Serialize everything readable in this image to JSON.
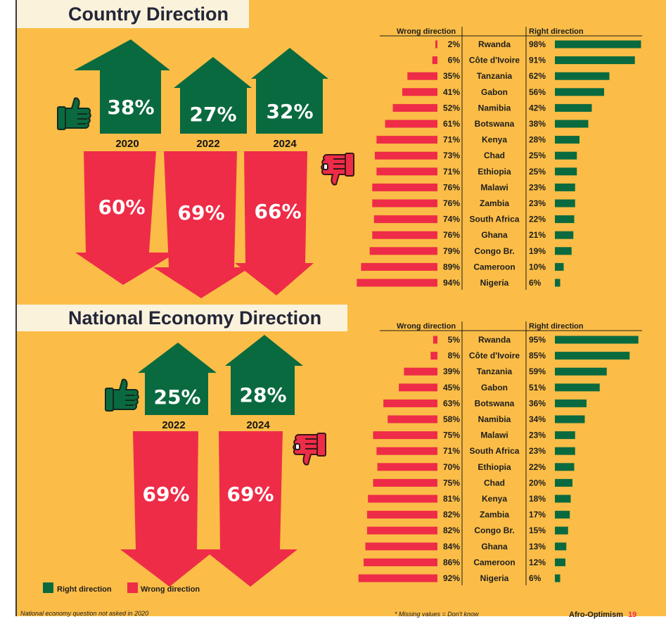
{
  "colors": {
    "right": "#0a6a3f",
    "wrong": "#ee2c48",
    "background": "#fbbd47",
    "banner": "#fbf2dc"
  },
  "sections": [
    {
      "title": "Country Direction",
      "years": [
        "2020",
        "2022",
        "2024"
      ],
      "right_pct": [
        "38%",
        "27%",
        "32%"
      ],
      "wrong_pct": [
        "60%",
        "69%",
        "66%"
      ]
    },
    {
      "title": "National Economy Direction",
      "years": [
        "2022",
        "2024"
      ],
      "right_pct": [
        "25%",
        "28%"
      ],
      "wrong_pct": [
        "69%",
        "69%"
      ]
    }
  ],
  "chart_data": [
    {
      "type": "bar",
      "title": "Country Direction",
      "header_wrong": "Wrong direction",
      "header_right": "Right direction",
      "categories": [
        "Rwanda",
        "Côte d'Ivoire",
        "Tanzania",
        "Gabon",
        "Namibia",
        "Botswana",
        "Kenya",
        "Chad",
        "Ethiopia",
        "Malawi",
        "Zambia",
        "South Africa",
        "Ghana",
        "Congo Br.",
        "Cameroon",
        "Nigeria"
      ],
      "series": [
        {
          "name": "Wrong direction",
          "values": [
            2,
            6,
            35,
            41,
            52,
            61,
            71,
            73,
            71,
            76,
            76,
            74,
            76,
            79,
            89,
            94
          ]
        },
        {
          "name": "Right direction",
          "values": [
            98,
            91,
            62,
            56,
            42,
            38,
            28,
            25,
            25,
            23,
            23,
            22,
            21,
            19,
            10,
            6
          ]
        }
      ]
    },
    {
      "type": "bar",
      "title": "National Economy Direction",
      "header_wrong": "Wrong direction",
      "header_right": "Right direction",
      "categories": [
        "Rwanda",
        "Côte d'Ivoire",
        "Tanzania",
        "Gabon",
        "Botswana",
        "Namibia",
        "Malawi",
        "South Africa",
        "Ethiopia",
        "Chad",
        "Kenya",
        "Zambia",
        "Congo Br.",
        "Ghana",
        "Cameroon",
        "Nigeria"
      ],
      "series": [
        {
          "name": "Wrong direction",
          "values": [
            5,
            8,
            39,
            45,
            63,
            58,
            75,
            71,
            70,
            75,
            81,
            82,
            82,
            84,
            86,
            92
          ]
        },
        {
          "name": "Right direction",
          "values": [
            95,
            85,
            59,
            51,
            36,
            34,
            23,
            23,
            22,
            20,
            18,
            17,
            15,
            13,
            12,
            6
          ]
        }
      ]
    }
  ],
  "legend": {
    "right": "Right direction",
    "wrong": "Wrong direction"
  },
  "notes": {
    "left": "National economy question not asked in 2020",
    "middle": "* Missing values = Don't know"
  },
  "footer": {
    "brand": "Afro-Optimism",
    "page": "19"
  }
}
